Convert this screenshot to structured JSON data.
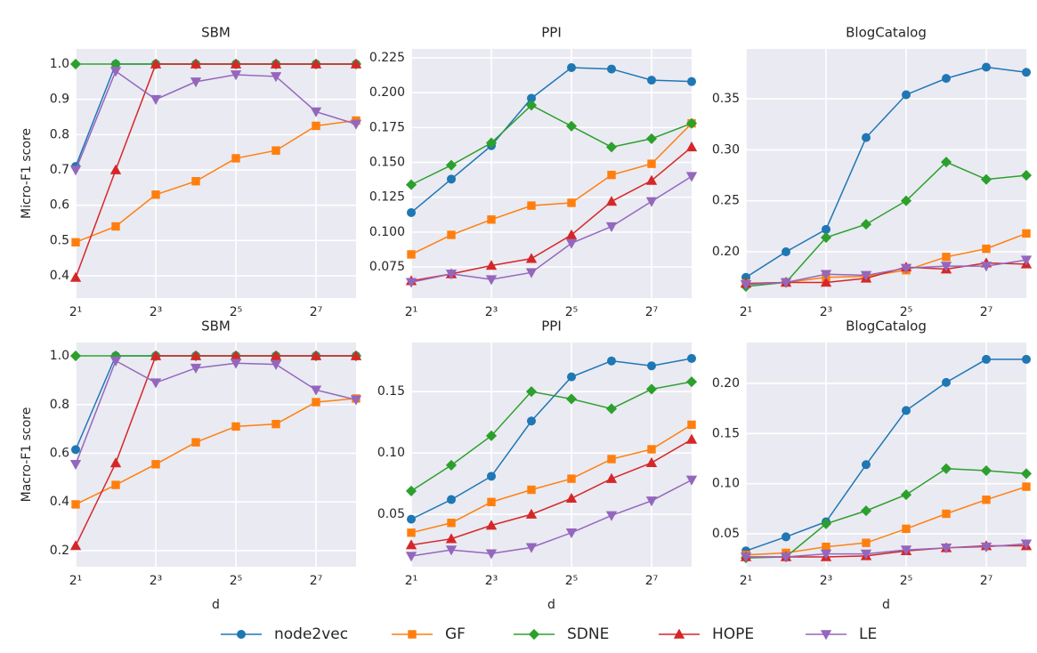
{
  "chart_data": [
    {
      "type": "line",
      "title": "SBM",
      "ylabel": "Micro-F1 score",
      "xscale": "log",
      "grid": true,
      "x": [
        2,
        4,
        8,
        16,
        32,
        64,
        128,
        256
      ],
      "xlim": [
        2,
        256
      ],
      "xticks": [
        {
          "value": 2,
          "label": "2¹"
        },
        {
          "value": 8,
          "label": "2³"
        },
        {
          "value": 32,
          "label": "2⁵"
        },
        {
          "value": 128,
          "label": "2⁷"
        }
      ],
      "ylim": [
        0.337,
        1.043
      ],
      "yticks": [
        0.4,
        0.5,
        0.6,
        0.7,
        0.8,
        0.9,
        {
          "value": 1,
          "label": "1.0"
        }
      ],
      "series": [
        {
          "name": "node2vec",
          "color": "#1f77b4",
          "marker": "circle",
          "values": [
            0.71,
            1.0,
            1.0,
            1.0,
            1.0,
            1.0,
            1.0,
            1.0
          ]
        },
        {
          "name": "GF",
          "color": "#ff7f0e",
          "marker": "square",
          "values": [
            0.495,
            0.54,
            0.63,
            0.668,
            0.733,
            0.755,
            0.825,
            0.84
          ]
        },
        {
          "name": "SDNE",
          "color": "#2ca02c",
          "marker": "diamond",
          "values": [
            1.0,
            1.0,
            1.0,
            1.0,
            1.0,
            1.0,
            1.0,
            1.0
          ]
        },
        {
          "name": "HOPE",
          "color": "#d62728",
          "marker": "triangle-up",
          "values": [
            0.395,
            0.7,
            1.0,
            1.0,
            1.0,
            1.0,
            1.0,
            1.0
          ]
        },
        {
          "name": "LE",
          "color": "#9467bd",
          "marker": "triangle-down",
          "values": [
            0.7,
            0.98,
            0.9,
            0.95,
            0.97,
            0.965,
            0.865,
            0.83
          ]
        }
      ]
    },
    {
      "type": "line",
      "title": "PPI",
      "xscale": "log",
      "grid": true,
      "x": [
        2,
        4,
        8,
        16,
        32,
        64,
        128,
        256
      ],
      "xlim": [
        2,
        256
      ],
      "xticks": [
        {
          "value": 2,
          "label": "2¹"
        },
        {
          "value": 8,
          "label": "2³"
        },
        {
          "value": 32,
          "label": "2⁵"
        },
        {
          "value": 128,
          "label": "2⁷"
        }
      ],
      "ylim": [
        0.0527,
        0.2314
      ],
      "yticks": [
        0.075,
        {
          "value": 0.1,
          "label": "0.100"
        },
        0.125,
        {
          "value": 0.15,
          "label": "0.150"
        },
        0.175,
        {
          "value": 0.2,
          "label": "0.200"
        },
        0.225
      ],
      "series": [
        {
          "name": "node2vec",
          "color": "#1f77b4",
          "marker": "circle",
          "values": [
            0.114,
            0.138,
            0.162,
            0.196,
            0.218,
            0.217,
            0.209,
            0.208
          ]
        },
        {
          "name": "GF",
          "color": "#ff7f0e",
          "marker": "square",
          "values": [
            0.084,
            0.098,
            0.109,
            0.119,
            0.121,
            0.141,
            0.149,
            0.178
          ]
        },
        {
          "name": "SDNE",
          "color": "#2ca02c",
          "marker": "diamond",
          "values": [
            0.134,
            0.148,
            0.164,
            0.191,
            0.176,
            0.161,
            0.167,
            0.178
          ]
        },
        {
          "name": "HOPE",
          "color": "#d62728",
          "marker": "triangle-up",
          "values": [
            0.065,
            0.07,
            0.076,
            0.081,
            0.098,
            0.122,
            0.137,
            0.161
          ]
        },
        {
          "name": "LE",
          "color": "#9467bd",
          "marker": "triangle-down",
          "values": [
            0.064,
            0.07,
            0.066,
            0.071,
            0.092,
            0.104,
            0.122,
            0.14
          ]
        }
      ]
    },
    {
      "type": "line",
      "title": "BlogCatalog",
      "xscale": "log",
      "grid": true,
      "x": [
        2,
        4,
        8,
        16,
        32,
        64,
        128,
        256
      ],
      "xlim": [
        2,
        256
      ],
      "xticks": [
        {
          "value": 2,
          "label": "2¹"
        },
        {
          "value": 8,
          "label": "2³"
        },
        {
          "value": 32,
          "label": "2⁵"
        },
        {
          "value": 128,
          "label": "2⁷"
        }
      ],
      "ylim": [
        0.1547,
        0.3989
      ],
      "yticks": [
        {
          "value": 0.2,
          "label": "0.20"
        },
        0.25,
        {
          "value": 0.3,
          "label": "0.30"
        },
        0.35
      ],
      "series": [
        {
          "name": "node2vec",
          "color": "#1f77b4",
          "marker": "circle",
          "values": [
            0.175,
            0.2,
            0.222,
            0.312,
            0.354,
            0.37,
            0.381,
            0.376
          ]
        },
        {
          "name": "GF",
          "color": "#ff7f0e",
          "marker": "square",
          "values": [
            0.169,
            0.17,
            0.175,
            0.176,
            0.182,
            0.195,
            0.203,
            0.218
          ]
        },
        {
          "name": "SDNE",
          "color": "#2ca02c",
          "marker": "diamond",
          "values": [
            0.166,
            0.17,
            0.214,
            0.227,
            0.25,
            0.288,
            0.271,
            0.275
          ]
        },
        {
          "name": "HOPE",
          "color": "#d62728",
          "marker": "triangle-up",
          "values": [
            0.169,
            0.17,
            0.17,
            0.174,
            0.185,
            0.183,
            0.189,
            0.188
          ]
        },
        {
          "name": "LE",
          "color": "#9467bd",
          "marker": "triangle-down",
          "values": [
            0.168,
            0.17,
            0.178,
            0.177,
            0.184,
            0.186,
            0.186,
            0.192
          ]
        }
      ]
    },
    {
      "type": "line",
      "title": "SBM",
      "ylabel": "Macro-F1 score",
      "xlabel": "d",
      "xscale": "log",
      "grid": true,
      "x": [
        2,
        4,
        8,
        16,
        32,
        64,
        128,
        256
      ],
      "xlim": [
        2,
        256
      ],
      "xticks": [
        {
          "value": 2,
          "label": "2¹"
        },
        {
          "value": 8,
          "label": "2³"
        },
        {
          "value": 32,
          "label": "2⁵"
        },
        {
          "value": 128,
          "label": "2⁷"
        }
      ],
      "ylim": [
        0.134,
        1.055
      ],
      "yticks": [
        0.2,
        0.4,
        0.6,
        0.8,
        {
          "value": 1,
          "label": "1.0"
        }
      ],
      "series": [
        {
          "name": "node2vec",
          "color": "#1f77b4",
          "marker": "circle",
          "values": [
            0.615,
            1.0,
            1.0,
            1.0,
            1.0,
            1.0,
            1.0,
            1.0
          ]
        },
        {
          "name": "GF",
          "color": "#ff7f0e",
          "marker": "square",
          "values": [
            0.39,
            0.47,
            0.555,
            0.645,
            0.71,
            0.72,
            0.81,
            0.825
          ]
        },
        {
          "name": "SDNE",
          "color": "#2ca02c",
          "marker": "diamond",
          "values": [
            1.0,
            1.0,
            1.0,
            1.0,
            1.0,
            1.0,
            1.0,
            1.0
          ]
        },
        {
          "name": "HOPE",
          "color": "#d62728",
          "marker": "triangle-up",
          "values": [
            0.22,
            0.56,
            1.0,
            1.0,
            1.0,
            1.0,
            1.0,
            1.0
          ]
        },
        {
          "name": "LE",
          "color": "#9467bd",
          "marker": "triangle-down",
          "values": [
            0.555,
            0.98,
            0.89,
            0.95,
            0.97,
            0.965,
            0.86,
            0.82
          ]
        }
      ]
    },
    {
      "type": "line",
      "title": "PPI",
      "xlabel": "d",
      "xscale": "log",
      "grid": true,
      "x": [
        2,
        4,
        8,
        16,
        32,
        64,
        128,
        256
      ],
      "xlim": [
        2,
        256
      ],
      "xticks": [
        {
          "value": 2,
          "label": "2¹"
        },
        {
          "value": 8,
          "label": "2³"
        },
        {
          "value": 32,
          "label": "2⁵"
        },
        {
          "value": 128,
          "label": "2⁷"
        }
      ],
      "ylim": [
        0.0073,
        0.19
      ],
      "yticks": [
        0.05,
        {
          "value": 0.1,
          "label": "0.10"
        },
        0.15
      ],
      "series": [
        {
          "name": "node2vec",
          "color": "#1f77b4",
          "marker": "circle",
          "values": [
            0.046,
            0.062,
            0.081,
            0.126,
            0.162,
            0.175,
            0.171,
            0.177
          ]
        },
        {
          "name": "GF",
          "color": "#ff7f0e",
          "marker": "square",
          "values": [
            0.035,
            0.043,
            0.06,
            0.07,
            0.079,
            0.095,
            0.103,
            0.123
          ]
        },
        {
          "name": "SDNE",
          "color": "#2ca02c",
          "marker": "diamond",
          "values": [
            0.069,
            0.09,
            0.114,
            0.15,
            0.144,
            0.136,
            0.152,
            0.158
          ]
        },
        {
          "name": "HOPE",
          "color": "#d62728",
          "marker": "triangle-up",
          "values": [
            0.025,
            0.03,
            0.041,
            0.05,
            0.063,
            0.079,
            0.092,
            0.111
          ]
        },
        {
          "name": "LE",
          "color": "#9467bd",
          "marker": "triangle-down",
          "values": [
            0.016,
            0.021,
            0.018,
            0.023,
            0.035,
            0.049,
            0.061,
            0.078
          ]
        }
      ]
    },
    {
      "type": "line",
      "title": "BlogCatalog",
      "xlabel": "d",
      "xscale": "log",
      "grid": true,
      "x": [
        2,
        4,
        8,
        16,
        32,
        64,
        128,
        256
      ],
      "xlim": [
        2,
        256
      ],
      "xticks": [
        {
          "value": 2,
          "label": "2¹"
        },
        {
          "value": 8,
          "label": "2³"
        },
        {
          "value": 32,
          "label": "2⁵"
        },
        {
          "value": 128,
          "label": "2⁷"
        }
      ],
      "ylim": [
        0.0172,
        0.2408
      ],
      "yticks": [
        0.05,
        {
          "value": 0.1,
          "label": "0.10"
        },
        0.15,
        {
          "value": 0.2,
          "label": "0.20"
        }
      ],
      "series": [
        {
          "name": "node2vec",
          "color": "#1f77b4",
          "marker": "circle",
          "values": [
            0.033,
            0.047,
            0.062,
            0.119,
            0.173,
            0.201,
            0.224,
            0.224
          ]
        },
        {
          "name": "GF",
          "color": "#ff7f0e",
          "marker": "square",
          "values": [
            0.029,
            0.031,
            0.037,
            0.041,
            0.055,
            0.07,
            0.084,
            0.097
          ]
        },
        {
          "name": "SDNE",
          "color": "#2ca02c",
          "marker": "diamond",
          "values": [
            0.026,
            0.027,
            0.06,
            0.073,
            0.089,
            0.115,
            0.113,
            0.11
          ]
        },
        {
          "name": "HOPE",
          "color": "#d62728",
          "marker": "triangle-up",
          "values": [
            0.027,
            0.027,
            0.027,
            0.028,
            0.033,
            0.036,
            0.038,
            0.038
          ]
        },
        {
          "name": "LE",
          "color": "#9467bd",
          "marker": "triangle-down",
          "values": [
            0.027,
            0.027,
            0.03,
            0.03,
            0.034,
            0.036,
            0.037,
            0.04
          ]
        }
      ]
    }
  ]
}
